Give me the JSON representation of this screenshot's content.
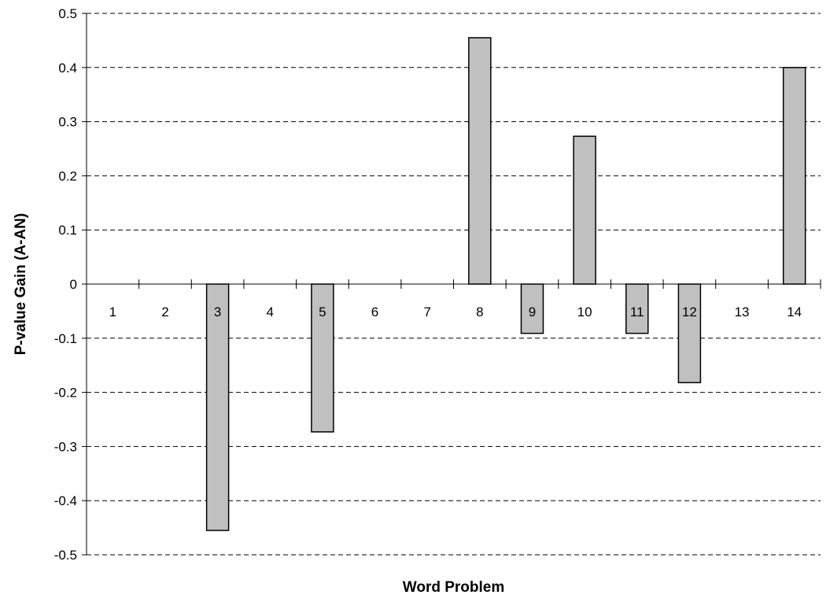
{
  "chart_data": {
    "type": "bar",
    "title": "",
    "xlabel": "Word Problem",
    "ylabel": "P-value Gain (A-AN)",
    "categories": [
      "1",
      "2",
      "3",
      "4",
      "5",
      "6",
      "7",
      "8",
      "9",
      "10",
      "11",
      "12",
      "13",
      "14"
    ],
    "values": [
      0,
      0,
      -0.455,
      0,
      -0.273,
      0,
      0,
      0.455,
      -0.091,
      0.273,
      -0.091,
      -0.182,
      0,
      0.4
    ],
    "ylim": [
      -0.5,
      0.5
    ],
    "yticks": [
      "0.5",
      "0.4",
      "0.3",
      "0.2",
      "0.1",
      "0",
      "-0.1",
      "-0.2",
      "-0.3",
      "-0.4",
      "-0.5"
    ],
    "ytick_values": [
      0.5,
      0.4,
      0.3,
      0.2,
      0.1,
      0,
      -0.1,
      -0.2,
      -0.3,
      -0.4,
      -0.5
    ],
    "grid": true,
    "bar_color": "#c0c0c0",
    "bar_edge_color": "#000000",
    "grid_color": "#000000"
  }
}
